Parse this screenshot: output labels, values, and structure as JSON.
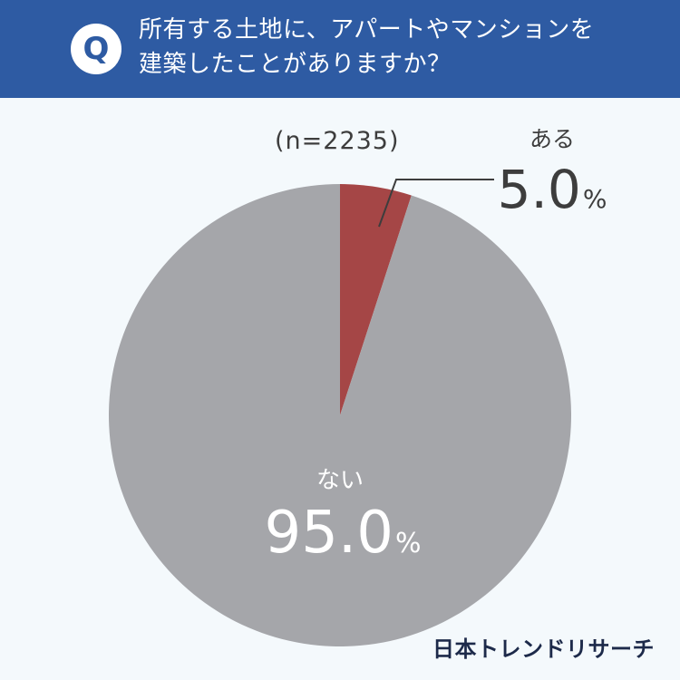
{
  "header": {
    "q_label": "Q",
    "question_line1": "所有する土地に、アパートやマンションを",
    "question_line2": "建築したことがありますか？"
  },
  "sample_size": "(n=2235)",
  "brand": "日本トレンドリサーチ",
  "colors": {
    "header_bg": "#2e5ba3",
    "slice_yes": "#a54646",
    "slice_no": "#a5a6aa"
  },
  "chart_data": {
    "type": "pie",
    "slices": [
      {
        "label": "ある",
        "value": 5.0,
        "value_text": "5.0",
        "unit": "%",
        "color": "#a54646"
      },
      {
        "label": "ない",
        "value": 95.0,
        "value_text": "95.0",
        "unit": "%",
        "color": "#a5a6aa"
      }
    ]
  }
}
